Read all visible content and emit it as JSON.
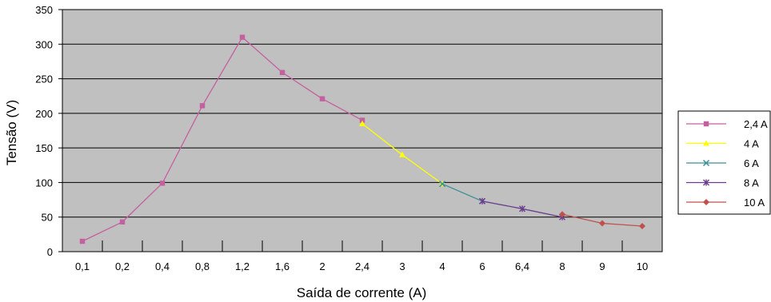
{
  "chart_data": {
    "type": "line",
    "title": "",
    "xlabel": "Saída de corrente (A)",
    "ylabel": "Tensão (V)",
    "ylim": [
      0,
      350
    ],
    "yticks": [
      0,
      50,
      100,
      150,
      200,
      250,
      300,
      350
    ],
    "grid": "horizontal",
    "background": "#c0c0c0",
    "legend_position": "right",
    "categories": [
      "0,1",
      "0,2",
      "0,4",
      "0,8",
      "1,2",
      "1,6",
      "2",
      "2,4",
      "3",
      "4",
      "6",
      "6,4",
      "8",
      "9",
      "10"
    ],
    "series": [
      {
        "name": "2,4 A",
        "color": "#c4609f",
        "marker": "square",
        "points": [
          [
            0.1,
            15
          ],
          [
            0.2,
            43
          ],
          [
            0.4,
            99
          ],
          [
            0.8,
            211
          ],
          [
            1.2,
            310
          ],
          [
            1.6,
            259
          ],
          [
            2,
            221
          ],
          [
            2.4,
            190
          ]
        ]
      },
      {
        "name": "4 A",
        "color": "#ffff00",
        "marker": "triangle",
        "points": [
          [
            2.4,
            185
          ],
          [
            3,
            140
          ],
          [
            4,
            98
          ]
        ]
      },
      {
        "name": "6 A",
        "color": "#3a8f99",
        "marker": "x",
        "points": [
          [
            4,
            98
          ],
          [
            6,
            73
          ]
        ]
      },
      {
        "name": "8 A",
        "color": "#6a3d8e",
        "marker": "star",
        "points": [
          [
            6,
            73
          ],
          [
            6.4,
            62
          ],
          [
            8,
            50
          ]
        ]
      },
      {
        "name": "10 A",
        "color": "#c0504d",
        "marker": "diamond",
        "points": [
          [
            8,
            54
          ],
          [
            9,
            41
          ],
          [
            10,
            37
          ]
        ]
      }
    ]
  }
}
